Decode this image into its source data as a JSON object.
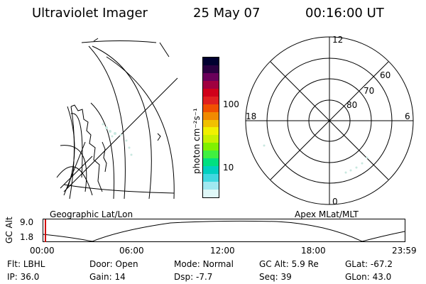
{
  "header": {
    "title": "Ultraviolet Imager",
    "date": "25 May 07",
    "time": "00:16:00 UT"
  },
  "colorbar": {
    "label": "photon cm⁻²s⁻¹",
    "ticks": [
      "100",
      "10"
    ],
    "colors": [
      "#000030",
      "#2a0040",
      "#6a005a",
      "#a00040",
      "#d0001a",
      "#e02020",
      "#f05000",
      "#f08a00",
      "#f0c000",
      "#f0f000",
      "#c8f000",
      "#80f000",
      "#40f040",
      "#00e080",
      "#00d0c0",
      "#40d8e0",
      "#a0e8f0",
      "#e0f8f8"
    ]
  },
  "polar_plot": {
    "mlt_labels": {
      "top": "12",
      "bottom": "0",
      "left": "18",
      "right": "6"
    },
    "lat_labels": [
      "60",
      "70",
      "80"
    ]
  },
  "map_labels": {
    "left": "Geographic Lat/Lon",
    "right": "Apex MLat/MLT"
  },
  "alt_strip": {
    "ylabel": "GC Alt",
    "ticks": [
      "9.0",
      "1.8"
    ],
    "time_ticks": [
      "00:00",
      "06:00",
      "12:00",
      "18:00",
      "23:59"
    ],
    "marker_color": "#d00000"
  },
  "footer": {
    "row1": [
      {
        "key": "Flt:",
        "value": "LBHL"
      },
      {
        "key": "Door:",
        "value": "Open"
      },
      {
        "key": "Mode:",
        "value": "Normal"
      },
      {
        "key": "GC Alt:",
        "value": "5.9 Re"
      },
      {
        "key": "GLat:",
        "value": "-67.2"
      }
    ],
    "row2": [
      {
        "key": "IP:",
        "value": "36.0"
      },
      {
        "key": "Gain:",
        "value": "14"
      },
      {
        "key": "Dsp:",
        "value": "-7.7"
      },
      {
        "key": "Seq:",
        "value": "39"
      },
      {
        "key": "GLon:",
        "value": "43.0"
      }
    ]
  }
}
